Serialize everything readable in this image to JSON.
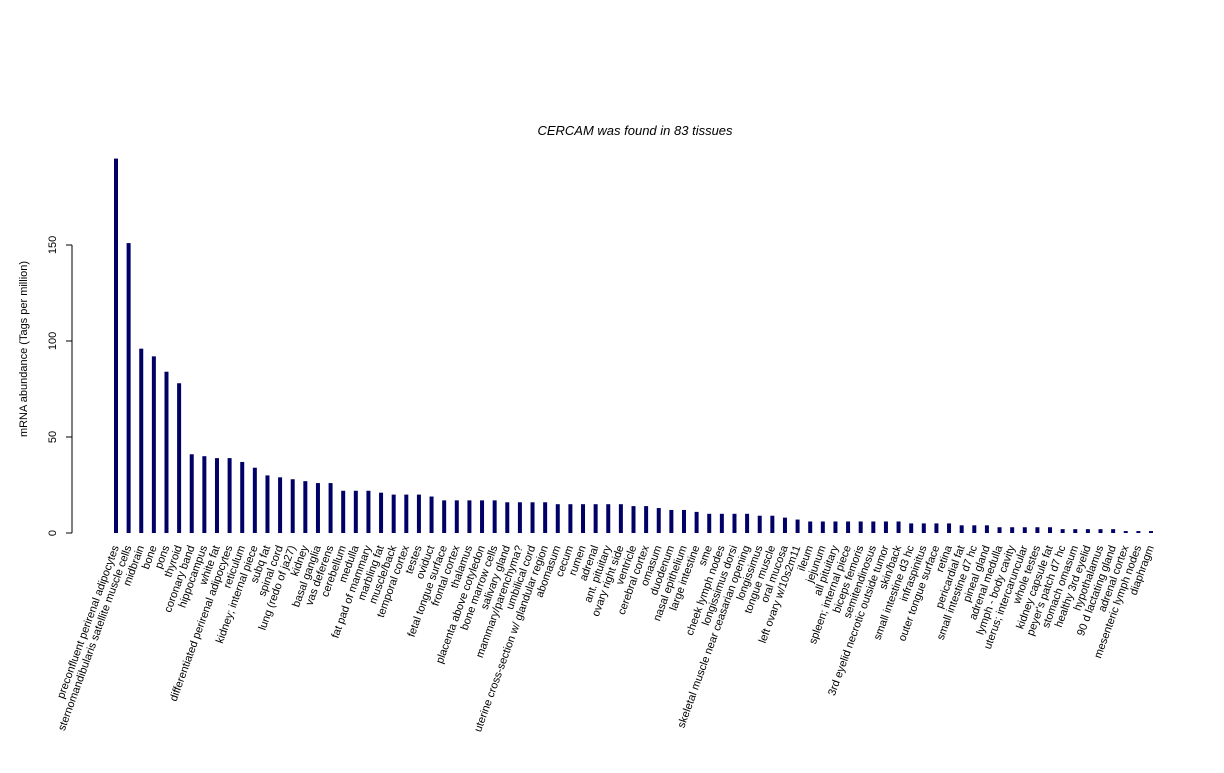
{
  "chart_data": {
    "type": "bar",
    "title": "CERCAM  was found in  83  tissues",
    "y_label": "mRNA abundance (Tags per million)",
    "color": "#000066",
    "ylim": [
      0,
      200
    ],
    "yticks": [
      0,
      50,
      100,
      150
    ],
    "categories": [
      "preconfluent perirenal adipocytes",
      "sternomandibularis satellite muscle cells",
      "midbrain",
      "bone",
      "pons",
      "thyroid",
      "coronary band",
      "hippocampus",
      "white fat",
      "differentiated perirenal adipocytes",
      "reticulum",
      "kidney; internal piece",
      "subq fat",
      "spinal cord",
      "lung (redo of ja27)",
      "kidney",
      "basal ganglia",
      "vas deferens",
      "cerebellum",
      "medulla",
      "fat pad of mammary",
      "marbling fat",
      "muscle/back",
      "temporal cortex",
      "testes",
      "oviduct",
      "fetal tongue surface",
      "frontal cortex",
      "thalamus",
      "placenta above cotyledon",
      "bone marrow cells",
      "salivary gland",
      "mammary/parenchyma?",
      "umbilical cord",
      "uterine cross-section w/ glandular region",
      "abomasum",
      "cecum",
      "rumen",
      "adrenal",
      "ant. pituitary",
      "ovary right side",
      "ventricle",
      "cerebral cortex",
      "omasum",
      "duodenum",
      "nasal epithelium",
      "large intestine",
      "sme",
      "cheek lymph nodes",
      "longissimus dorsi",
      "skeletal muscle near ceasarian opening",
      "longissimus",
      "tongue muscle",
      "oral mucosa",
      "left ovary w/10s2m11",
      "ileum",
      "jejunum",
      "all pituitary",
      "spleen; internal piece",
      "biceps femoris",
      "semitendinosus",
      "3rd eyelid necrotic outside tumor",
      "skin/back",
      "small intestine d3 hc",
      "infraspinitus",
      "outer tongue surface",
      "retina",
      "pericardial fat",
      "small intestine d7 hc",
      "pineal gland",
      "adrenal medulla",
      "lymph - body cavity",
      "uterus; intercaruncular",
      "whole testes",
      "kidney capsule fat",
      "peyer's patch d7 hc",
      "stomach omasum",
      "healthy 3rd eyelid",
      "hypothalamus",
      "90 d lactating gland",
      "adrenal cortex",
      "mesenteric lymph nodes",
      "diaphragm"
    ],
    "values": [
      195,
      151,
      96,
      92,
      84,
      78,
      41,
      40,
      39,
      39,
      37,
      34,
      30,
      29,
      28,
      27,
      26,
      26,
      22,
      22,
      22,
      21,
      20,
      20,
      20,
      19,
      17,
      17,
      17,
      17,
      17,
      16,
      16,
      16,
      16,
      15,
      15,
      15,
      15,
      15,
      15,
      14,
      14,
      13,
      12,
      12,
      11,
      10,
      10,
      10,
      10,
      9,
      9,
      8,
      7,
      6,
      6,
      6,
      6,
      6,
      6,
      6,
      6,
      5,
      5,
      5,
      5,
      4,
      4,
      4,
      3,
      3,
      3,
      3,
      3,
      2,
      2,
      2,
      2,
      2,
      1,
      1,
      1
    ]
  }
}
